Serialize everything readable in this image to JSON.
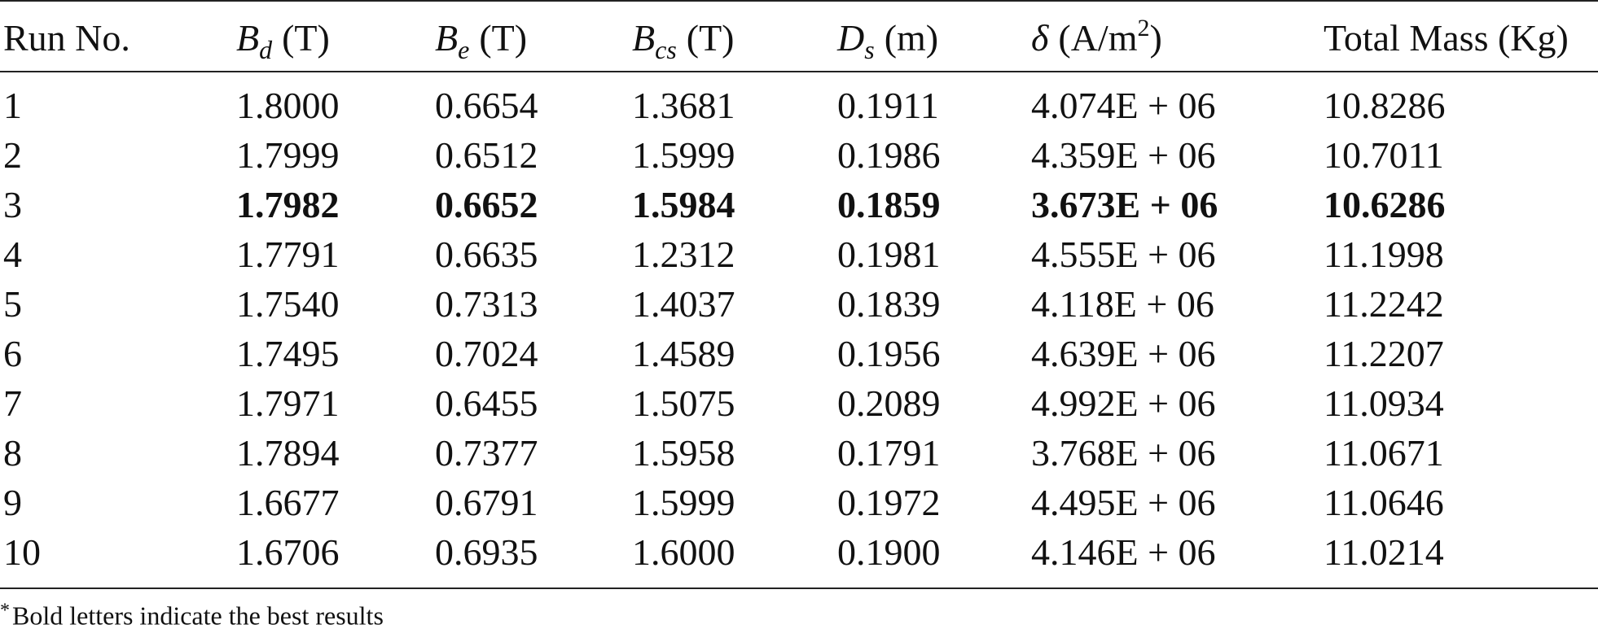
{
  "table": {
    "header": [
      {
        "text": "Run No."
      },
      {
        "symbol": "B",
        "sub": "d",
        "unit": "(T)"
      },
      {
        "symbol": "B",
        "sub": "e",
        "unit": "(T)"
      },
      {
        "symbol": "B",
        "sub": "cs",
        "unit": "(T)"
      },
      {
        "symbol": "D",
        "sub": "s",
        "unit": "(m)"
      },
      {
        "symbol": "δ",
        "unit": "(A/m",
        "sup": "2",
        "close": ")"
      },
      {
        "text": "Total Mass (Kg)"
      }
    ],
    "rows": [
      {
        "cells": [
          "1",
          "1.8000",
          "0.6654",
          "1.3681",
          "0.1911",
          "4.074E + 06",
          "10.8286"
        ]
      },
      {
        "cells": [
          "2",
          "1.7999",
          "0.6512",
          "1.5999",
          "0.1986",
          "4.359E + 06",
          "10.7011"
        ]
      },
      {
        "cells": [
          "3",
          "1.7982",
          "0.6652",
          "1.5984",
          "0.1859",
          "3.673E + 06",
          "10.6286"
        ],
        "bold": true
      },
      {
        "cells": [
          "4",
          "1.7791",
          "0.6635",
          "1.2312",
          "0.1981",
          "4.555E + 06",
          "11.1998"
        ]
      },
      {
        "cells": [
          "5",
          "1.7540",
          "0.7313",
          "1.4037",
          "0.1839",
          "4.118E + 06",
          "11.2242"
        ]
      },
      {
        "cells": [
          "6",
          "1.7495",
          "0.7024",
          "1.4589",
          "0.1956",
          "4.639E + 06",
          "11.2207"
        ]
      },
      {
        "cells": [
          "7",
          "1.7971",
          "0.6455",
          "1.5075",
          "0.2089",
          "4.992E + 06",
          "11.0934"
        ]
      },
      {
        "cells": [
          "8",
          "1.7894",
          "0.7377",
          "1.5958",
          "0.1791",
          "3.768E + 06",
          "11.0671"
        ]
      },
      {
        "cells": [
          "9",
          "1.6677",
          "0.6791",
          "1.5999",
          "0.1972",
          "4.495E + 06",
          "11.0646"
        ]
      },
      {
        "cells": [
          "10",
          "1.6706",
          "0.6935",
          "1.6000",
          "0.1900",
          "4.146E + 06",
          "11.0214"
        ]
      }
    ],
    "footnote": {
      "mark": "*",
      "text": "Bold letters indicate the best results"
    }
  }
}
